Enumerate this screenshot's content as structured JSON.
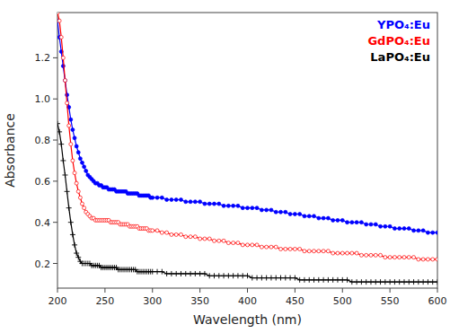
{
  "chart_data": {
    "type": "line",
    "title": "",
    "xlabel": "Wavelength (nm)",
    "ylabel": "Absorbance",
    "xlim": [
      200,
      600
    ],
    "ylim": [
      0.08,
      1.42
    ],
    "xticks": [
      200,
      250,
      300,
      350,
      400,
      450,
      500,
      550,
      600
    ],
    "yticks": [
      0.2,
      0.4,
      0.6,
      0.8,
      {
        "value": 1.0,
        "label": "1.0"
      },
      1.2
    ],
    "grid": false,
    "legend": "upper-right",
    "x": [
      200,
      202,
      204,
      206,
      208,
      210,
      212,
      214,
      216,
      218,
      220,
      222,
      224,
      226,
      228,
      230,
      232,
      234,
      236,
      238,
      240,
      242,
      244,
      246,
      248,
      250,
      252,
      254,
      256,
      258,
      260,
      262,
      264,
      266,
      268,
      270,
      272,
      274,
      276,
      278,
      280,
      282,
      284,
      286,
      288,
      290,
      292,
      294,
      296,
      298,
      300,
      305,
      310,
      315,
      320,
      325,
      330,
      335,
      340,
      345,
      350,
      355,
      360,
      365,
      370,
      375,
      380,
      385,
      390,
      395,
      400,
      405,
      410,
      415,
      420,
      425,
      430,
      435,
      440,
      445,
      450,
      455,
      460,
      465,
      470,
      475,
      480,
      485,
      490,
      495,
      500,
      505,
      510,
      515,
      520,
      525,
      530,
      535,
      540,
      545,
      550,
      555,
      560,
      565,
      570,
      575,
      580,
      585,
      590,
      595,
      600
    ],
    "series": [
      {
        "name": "YPO₄:Eu",
        "color": "blue",
        "marker": "circle",
        "values": [
          1.38,
          1.3,
          1.23,
          1.16,
          1.09,
          1.02,
          0.96,
          0.9,
          0.85,
          0.81,
          0.77,
          0.74,
          0.71,
          0.69,
          0.67,
          0.65,
          0.63,
          0.62,
          0.61,
          0.6,
          0.59,
          0.59,
          0.58,
          0.58,
          0.57,
          0.57,
          0.57,
          0.56,
          0.56,
          0.56,
          0.56,
          0.55,
          0.55,
          0.55,
          0.55,
          0.55,
          0.55,
          0.54,
          0.54,
          0.54,
          0.54,
          0.54,
          0.54,
          0.53,
          0.53,
          0.53,
          0.53,
          0.53,
          0.53,
          0.52,
          0.52,
          0.52,
          0.52,
          0.51,
          0.51,
          0.51,
          0.51,
          0.5,
          0.5,
          0.5,
          0.5,
          0.49,
          0.49,
          0.49,
          0.49,
          0.48,
          0.48,
          0.48,
          0.48,
          0.47,
          0.47,
          0.47,
          0.47,
          0.46,
          0.46,
          0.46,
          0.45,
          0.45,
          0.45,
          0.44,
          0.44,
          0.44,
          0.43,
          0.43,
          0.43,
          0.42,
          0.42,
          0.42,
          0.41,
          0.41,
          0.41,
          0.4,
          0.4,
          0.4,
          0.4,
          0.39,
          0.39,
          0.39,
          0.38,
          0.38,
          0.38,
          0.37,
          0.37,
          0.37,
          0.37,
          0.36,
          0.36,
          0.36,
          0.35,
          0.35,
          0.35
        ]
      },
      {
        "name": "GdPO₄:Eu",
        "color": "red",
        "marker": "open-circle",
        "values": [
          1.42,
          1.38,
          1.3,
          1.2,
          1.09,
          0.98,
          0.87,
          0.78,
          0.7,
          0.64,
          0.59,
          0.55,
          0.52,
          0.49,
          0.47,
          0.45,
          0.44,
          0.43,
          0.42,
          0.42,
          0.41,
          0.41,
          0.41,
          0.41,
          0.41,
          0.41,
          0.41,
          0.41,
          0.4,
          0.4,
          0.4,
          0.4,
          0.4,
          0.39,
          0.39,
          0.39,
          0.39,
          0.39,
          0.38,
          0.38,
          0.38,
          0.38,
          0.38,
          0.37,
          0.37,
          0.37,
          0.37,
          0.37,
          0.36,
          0.36,
          0.36,
          0.36,
          0.35,
          0.35,
          0.34,
          0.34,
          0.34,
          0.33,
          0.33,
          0.33,
          0.32,
          0.32,
          0.32,
          0.31,
          0.31,
          0.31,
          0.3,
          0.3,
          0.3,
          0.29,
          0.29,
          0.29,
          0.29,
          0.28,
          0.28,
          0.28,
          0.28,
          0.27,
          0.27,
          0.27,
          0.27,
          0.27,
          0.26,
          0.26,
          0.26,
          0.26,
          0.26,
          0.26,
          0.25,
          0.25,
          0.25,
          0.25,
          0.25,
          0.25,
          0.24,
          0.24,
          0.24,
          0.24,
          0.24,
          0.23,
          0.23,
          0.23,
          0.23,
          0.23,
          0.23,
          0.23,
          0.22,
          0.22,
          0.22,
          0.22,
          0.22
        ]
      },
      {
        "name": "LaPO₄:Eu",
        "color": "black",
        "marker": "plus",
        "values": [
          0.88,
          0.84,
          0.78,
          0.7,
          0.63,
          0.55,
          0.47,
          0.4,
          0.34,
          0.29,
          0.25,
          0.23,
          0.21,
          0.2,
          0.2,
          0.2,
          0.2,
          0.2,
          0.19,
          0.19,
          0.19,
          0.19,
          0.19,
          0.18,
          0.18,
          0.18,
          0.18,
          0.18,
          0.18,
          0.18,
          0.18,
          0.18,
          0.17,
          0.17,
          0.17,
          0.17,
          0.17,
          0.17,
          0.17,
          0.17,
          0.17,
          0.17,
          0.16,
          0.16,
          0.16,
          0.16,
          0.16,
          0.16,
          0.16,
          0.16,
          0.16,
          0.16,
          0.16,
          0.15,
          0.15,
          0.15,
          0.15,
          0.15,
          0.15,
          0.15,
          0.15,
          0.15,
          0.14,
          0.14,
          0.14,
          0.14,
          0.14,
          0.14,
          0.14,
          0.14,
          0.14,
          0.13,
          0.13,
          0.13,
          0.13,
          0.13,
          0.13,
          0.13,
          0.13,
          0.13,
          0.13,
          0.12,
          0.12,
          0.12,
          0.12,
          0.12,
          0.12,
          0.12,
          0.12,
          0.12,
          0.12,
          0.12,
          0.11,
          0.11,
          0.11,
          0.11,
          0.11,
          0.11,
          0.11,
          0.11,
          0.11,
          0.11,
          0.11,
          0.11,
          0.11,
          0.11,
          0.11,
          0.11,
          0.11,
          0.11,
          0.11
        ]
      }
    ]
  }
}
